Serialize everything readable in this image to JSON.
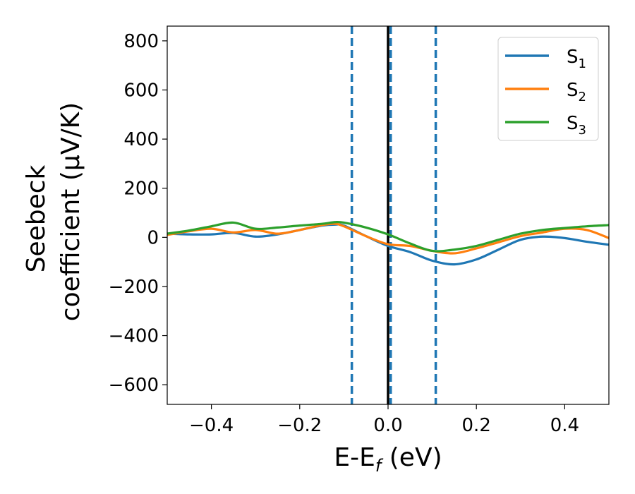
{
  "chart_data": {
    "type": "line",
    "xlabel": "E-E",
    "xlabel_sub": "f",
    "xlabel_unit": " (eV)",
    "ylabel_line1": "Seebeck",
    "ylabel_line2": "coefficient  (μV/K)",
    "xlim": [
      -0.5,
      0.5
    ],
    "ylim": [
      -680,
      860
    ],
    "x_ticks": [
      -0.4,
      -0.2,
      0.0,
      0.2,
      0.4
    ],
    "x_tick_labels": [
      "−0.4",
      "−0.2",
      "0.0",
      "0.2",
      "0.4"
    ],
    "y_ticks": [
      -600,
      -400,
      -200,
      0,
      200,
      400,
      600,
      800
    ],
    "y_tick_labels": [
      "−600",
      "−400",
      "−200",
      "0",
      "200",
      "400",
      "600",
      "800"
    ],
    "legend_position": "top-right",
    "reference_lines": [
      {
        "x": 0.0,
        "style": "solid",
        "color": "#000000"
      },
      {
        "x": -0.082,
        "style": "dashed",
        "color": "#1f77b4"
      },
      {
        "x": 0.006,
        "style": "dashed",
        "color": "#1f77b4"
      },
      {
        "x": 0.108,
        "style": "dashed",
        "color": "#1f77b4"
      }
    ],
    "series": [
      {
        "name": "S",
        "sub": "1",
        "color": "#1f77b4",
        "x": [
          -0.5,
          -0.45,
          -0.4,
          -0.35,
          -0.3,
          -0.25,
          -0.2,
          -0.15,
          -0.12,
          -0.1,
          -0.05,
          0.0,
          0.05,
          0.1,
          0.15,
          0.2,
          0.25,
          0.3,
          0.35,
          0.4,
          0.45,
          0.5
        ],
        "y": [
          15,
          12,
          12,
          18,
          3,
          12,
          30,
          48,
          52,
          48,
          5,
          -35,
          -60,
          -95,
          -110,
          -90,
          -50,
          -10,
          3,
          -3,
          -18,
          -30
        ]
      },
      {
        "name": "S",
        "sub": "2",
        "color": "#ff7f0e",
        "x": [
          -0.5,
          -0.45,
          -0.4,
          -0.35,
          -0.3,
          -0.25,
          -0.2,
          -0.15,
          -0.12,
          -0.1,
          -0.05,
          0.0,
          0.05,
          0.1,
          0.15,
          0.2,
          0.25,
          0.3,
          0.35,
          0.4,
          0.45,
          0.5
        ],
        "y": [
          10,
          25,
          35,
          20,
          30,
          15,
          30,
          50,
          55,
          45,
          5,
          -28,
          -35,
          -55,
          -65,
          -45,
          -20,
          5,
          20,
          35,
          30,
          -3
        ]
      },
      {
        "name": "S",
        "sub": "3",
        "color": "#2ca02c",
        "x": [
          -0.5,
          -0.45,
          -0.4,
          -0.35,
          -0.3,
          -0.25,
          -0.2,
          -0.15,
          -0.12,
          -0.1,
          -0.05,
          0.0,
          0.05,
          0.1,
          0.15,
          0.2,
          0.25,
          0.3,
          0.35,
          0.4,
          0.45,
          0.5
        ],
        "y": [
          15,
          28,
          45,
          60,
          35,
          40,
          48,
          55,
          62,
          60,
          40,
          12,
          -25,
          -55,
          -50,
          -35,
          -10,
          15,
          30,
          38,
          45,
          50
        ]
      }
    ]
  }
}
